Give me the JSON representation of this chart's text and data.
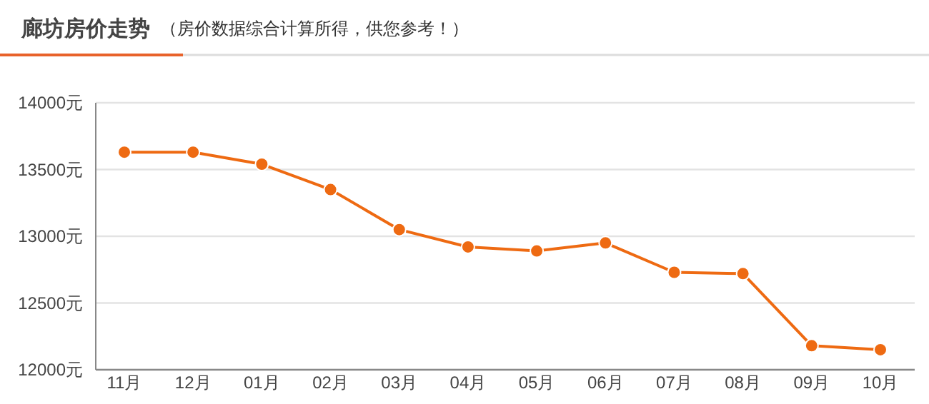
{
  "chart_data": {
    "type": "line",
    "title": "廊坊房价走势",
    "subtitle": "（房价数据综合计算所得，供您参考！）",
    "categories": [
      "11月",
      "12月",
      "01月",
      "02月",
      "03月",
      "04月",
      "05月",
      "06月",
      "07月",
      "08月",
      "09月",
      "10月"
    ],
    "series": [
      {
        "color": "#ee6a12",
        "values": [
          13630,
          13630,
          13540,
          13350,
          13050,
          12920,
          12890,
          12950,
          12730,
          12720,
          12180,
          12150
        ]
      }
    ],
    "ylim": [
      12000,
      14000
    ],
    "yticks": [
      {
        "value": 12000,
        "label": "12000元"
      },
      {
        "value": 12500,
        "label": "12500元"
      },
      {
        "value": 13000,
        "label": "13000元"
      },
      {
        "value": 13500,
        "label": "13500元"
      },
      {
        "value": 14000,
        "label": "14000元"
      }
    ],
    "grid": "y",
    "marker": "circle"
  }
}
